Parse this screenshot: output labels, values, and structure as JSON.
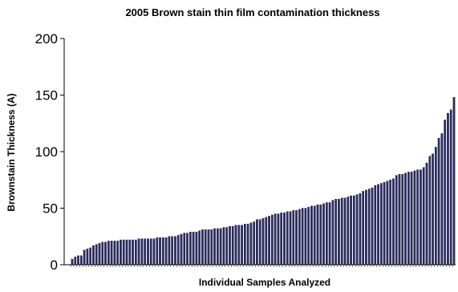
{
  "chart_data": {
    "type": "bar",
    "title": "2005 Brown stain thin film contamination thickness",
    "xlabel": "Individual Samples Analyzed",
    "ylabel": "Brownstain Thickness (A)",
    "ylim": [
      0,
      200
    ],
    "yticks": [
      0,
      50,
      100,
      150,
      200
    ],
    "grid": false,
    "legend": "none",
    "bar_color": "#2b2b6e",
    "values": [
      5,
      7,
      8,
      8,
      13,
      14,
      15,
      17,
      18,
      19,
      20,
      20,
      21,
      21,
      21,
      21,
      22,
      22,
      22,
      22,
      22,
      22,
      23,
      23,
      23,
      23,
      23,
      23,
      24,
      24,
      24,
      24,
      25,
      25,
      25,
      26,
      27,
      28,
      28,
      29,
      29,
      29,
      30,
      31,
      31,
      31,
      31,
      32,
      32,
      32,
      33,
      33,
      34,
      34,
      35,
      35,
      35,
      36,
      36,
      37,
      38,
      40,
      40,
      41,
      42,
      43,
      44,
      45,
      45,
      46,
      46,
      47,
      47,
      48,
      48,
      49,
      50,
      50,
      51,
      52,
      52,
      53,
      53,
      54,
      55,
      55,
      57,
      58,
      58,
      59,
      59,
      60,
      61,
      61,
      62,
      63,
      65,
      66,
      67,
      68,
      70,
      71,
      72,
      73,
      74,
      75,
      76,
      79,
      80,
      80,
      81,
      82,
      82,
      83,
      84,
      84,
      86,
      90,
      96,
      98,
      104,
      112,
      116,
      128,
      134,
      137,
      148
    ]
  }
}
